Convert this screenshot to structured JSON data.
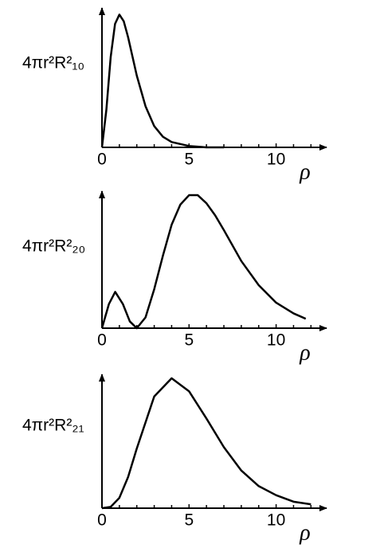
{
  "chart_data": [
    {
      "type": "line",
      "y_label": "4πr²R²₁₀",
      "x_label": "ρ",
      "x": [
        0,
        0.25,
        0.5,
        0.75,
        1,
        1.25,
        1.5,
        2,
        2.5,
        3,
        3.5,
        4,
        5,
        6,
        7
      ],
      "series": [
        {
          "color": "#000000",
          "values": [
            0,
            0.28,
            0.68,
            0.93,
            1,
            0.95,
            0.83,
            0.54,
            0.31,
            0.16,
            0.08,
            0.04,
            0.01,
            0,
            0
          ]
        }
      ],
      "xlim": [
        0,
        12.9
      ],
      "ylim": [
        0,
        1.05
      ],
      "xticks": [
        0,
        5,
        10
      ],
      "xminorticks": [
        1,
        2,
        3,
        4,
        6,
        7,
        8,
        9,
        11,
        12
      ]
    },
    {
      "type": "line",
      "y_label": "4πr²R²₂₀",
      "x_label": "ρ",
      "x": [
        0,
        0.4,
        0.76,
        1.2,
        1.6,
        2,
        2.5,
        3,
        3.5,
        4,
        4.5,
        5,
        5.5,
        6,
        6.5,
        7,
        8,
        9,
        10,
        11,
        11.7
      ],
      "series": [
        {
          "color": "#000000",
          "values": [
            0,
            0.18,
            0.27,
            0.18,
            0.05,
            0,
            0.08,
            0.29,
            0.54,
            0.77,
            0.92,
            0.99,
            0.99,
            0.93,
            0.84,
            0.73,
            0.5,
            0.32,
            0.19,
            0.11,
            0.07
          ]
        }
      ],
      "xlim": [
        0,
        12.9
      ],
      "ylim": [
        0,
        1.02
      ],
      "xticks": [
        0,
        5,
        10
      ],
      "xminorticks": [
        1,
        2,
        3,
        4,
        6,
        7,
        8,
        9,
        11,
        12
      ]
    },
    {
      "type": "line",
      "y_label": "4πr²R²₂₁",
      "x_label": "ρ",
      "x": [
        0,
        0.5,
        1,
        1.5,
        2,
        3,
        4,
        5,
        6,
        7,
        8,
        9,
        10,
        11,
        12
      ],
      "series": [
        {
          "color": "#000000",
          "values": [
            0,
            0.01,
            0.08,
            0.24,
            0.46,
            0.86,
            1,
            0.9,
            0.69,
            0.47,
            0.29,
            0.17,
            0.1,
            0.05,
            0.03
          ]
        }
      ],
      "xlim": [
        0,
        12.9
      ],
      "ylim": [
        0,
        1.03
      ],
      "xticks": [
        0,
        5,
        10
      ],
      "xminorticks": [
        1,
        2,
        3,
        4,
        6,
        7,
        8,
        9,
        11,
        12
      ]
    }
  ]
}
